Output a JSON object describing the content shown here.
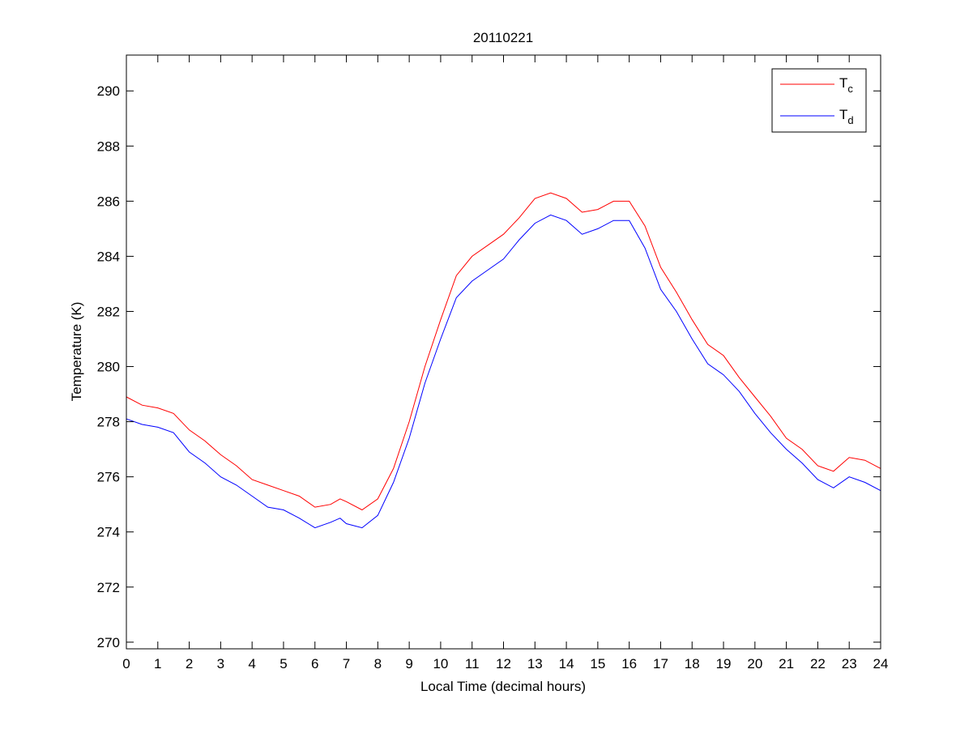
{
  "chart_data": {
    "type": "line",
    "title": "20110221",
    "xlabel": "Local Time (decimal hours)",
    "ylabel": "Temperature (K)",
    "xlim": [
      0,
      24
    ],
    "ylim": [
      269.76,
      291.3
    ],
    "xticks": [
      0,
      1,
      2,
      3,
      4,
      5,
      6,
      7,
      8,
      9,
      10,
      11,
      12,
      13,
      14,
      15,
      16,
      17,
      18,
      19,
      20,
      21,
      22,
      23,
      24
    ],
    "yticks": [
      270,
      272,
      274,
      276,
      278,
      280,
      282,
      284,
      286,
      288,
      290
    ],
    "grid": false,
    "legend_position": "top-right",
    "x": [
      0,
      0.5,
      1,
      1.5,
      2,
      2.5,
      3,
      3.5,
      4,
      4.5,
      5,
      5.5,
      6,
      6.5,
      6.8,
      7,
      7.5,
      8,
      8.5,
      9,
      9.5,
      10,
      10.5,
      11,
      11.5,
      12,
      12.5,
      13,
      13.5,
      14,
      14.5,
      15,
      15.5,
      16,
      16.5,
      17,
      17.5,
      18,
      18.5,
      19,
      19.5,
      20,
      20.5,
      21,
      21.5,
      22,
      22.5,
      23,
      23.5,
      24
    ],
    "series": [
      {
        "name": "T",
        "subscript": "c",
        "color": "#ff0000",
        "values": [
          278.9,
          278.6,
          278.5,
          278.3,
          277.7,
          277.3,
          276.8,
          276.4,
          275.9,
          275.7,
          275.5,
          275.3,
          274.9,
          275.0,
          275.2,
          275.1,
          274.8,
          275.2,
          276.3,
          278.0,
          280.0,
          281.7,
          283.3,
          284.0,
          284.4,
          284.8,
          285.4,
          286.1,
          286.3,
          286.1,
          285.6,
          285.7,
          286.0,
          286.0,
          285.1,
          283.6,
          282.7,
          281.7,
          280.8,
          280.4,
          279.6,
          278.9,
          278.2,
          277.4,
          277.0,
          276.4,
          276.2,
          276.7,
          276.6,
          276.3
        ]
      },
      {
        "name": "T",
        "subscript": "d",
        "color": "#0000ff",
        "values": [
          278.1,
          277.9,
          277.8,
          277.6,
          276.9,
          276.5,
          276.0,
          275.7,
          275.3,
          274.9,
          274.8,
          274.5,
          274.15,
          274.35,
          274.5,
          274.3,
          274.15,
          274.6,
          275.8,
          277.4,
          279.4,
          281.0,
          282.5,
          283.1,
          283.5,
          283.9,
          284.6,
          285.2,
          285.5,
          285.3,
          284.8,
          285.0,
          285.3,
          285.3,
          284.3,
          282.8,
          282.0,
          281.0,
          280.1,
          279.7,
          279.1,
          278.3,
          277.6,
          277.0,
          276.5,
          275.9,
          275.6,
          276.0,
          275.8,
          275.5
        ]
      }
    ]
  }
}
